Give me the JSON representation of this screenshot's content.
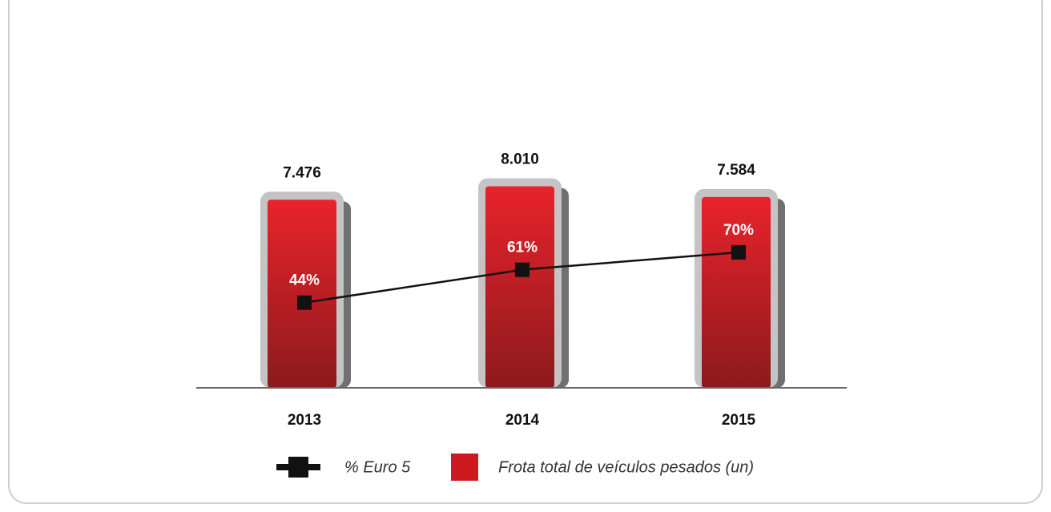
{
  "chart_data": {
    "type": "bar",
    "categories": [
      "2013",
      "2014",
      "2015"
    ],
    "series": [
      {
        "name": "Frota total de veículos pesados (un)",
        "type": "bar",
        "color": "#cc1a1f",
        "values": [
          7476,
          8010,
          7584
        ],
        "value_labels": [
          "7.476",
          "8.010",
          "7.584"
        ]
      },
      {
        "name": "% Euro 5",
        "type": "line",
        "color": "#111111",
        "axis": "y2",
        "values": [
          44,
          61,
          70
        ],
        "value_labels": [
          "44%",
          "61%",
          "70%"
        ]
      }
    ],
    "ylim": [
      0,
      10000
    ],
    "y2lim": [
      0,
      130
    ]
  }
}
